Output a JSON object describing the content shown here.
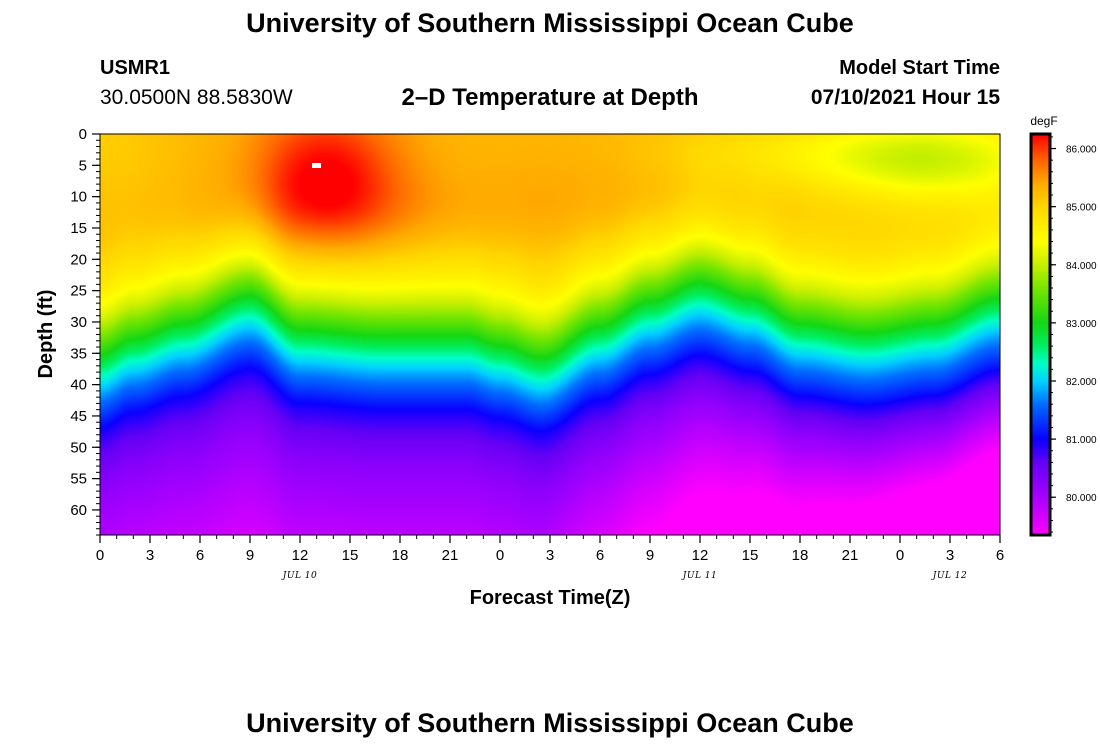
{
  "header": {
    "title": "University of Southern Mississippi Ocean Cube",
    "station": "USMR1",
    "coords": "30.0500N  88.5830W",
    "subtitle": "2–D Temperature at Depth",
    "model_start_label": "Model Start Time",
    "model_start_value": "07/10/2021 Hour 15"
  },
  "footer": {
    "title": "University of Southern Mississippi Ocean Cube"
  },
  "chart_data": {
    "type": "heatmap",
    "title": "2–D Temperature at Depth",
    "xlabel": "Forecast Time(Z)",
    "ylabel": "Depth (ft)",
    "x_unit": "hours since JUL 10 00Z",
    "xlim": [
      0,
      54
    ],
    "ylim": [
      0,
      64
    ],
    "y_inverted": true,
    "x_ticks": [
      0,
      3,
      6,
      9,
      12,
      15,
      18,
      21,
      24,
      27,
      30,
      33,
      36,
      39,
      42,
      45,
      48,
      51,
      54
    ],
    "x_tick_labels": [
      "0",
      "3",
      "6",
      "9",
      "12",
      "15",
      "18",
      "21",
      "0",
      "3",
      "6",
      "9",
      "12",
      "15",
      "18",
      "21",
      "0",
      "3",
      "6"
    ],
    "y_ticks": [
      0,
      5,
      10,
      15,
      20,
      25,
      30,
      35,
      40,
      45,
      50,
      55,
      60
    ],
    "y_tick_labels": [
      "0",
      "5",
      "10",
      "15",
      "20",
      "25",
      "30",
      "35",
      "40",
      "45",
      "50",
      "55",
      "60"
    ],
    "date_labels": [
      {
        "text": "JUL 10",
        "x": 12
      },
      {
        "text": "JUL 11",
        "x": 36
      },
      {
        "text": "JUL 12",
        "x": 51
      }
    ],
    "colorbar": {
      "unit": "degF",
      "min": 79.35,
      "max": 86.25,
      "ticks": [
        80,
        81,
        82,
        83,
        84,
        85,
        86
      ],
      "tick_labels": [
        "80.000",
        "81.000",
        "82.000",
        "83.000",
        "84.000",
        "85.000",
        "86.000"
      ]
    },
    "gradient_midline": [
      {
        "x": 0,
        "depth": 36
      },
      {
        "x": 2,
        "depth": 33.5
      },
      {
        "x": 5,
        "depth": 31
      },
      {
        "x": 9,
        "depth": 26.5
      },
      {
        "x": 12,
        "depth": 32
      },
      {
        "x": 17,
        "depth": 33
      },
      {
        "x": 22,
        "depth": 33
      },
      {
        "x": 24,
        "depth": 34.5
      },
      {
        "x": 26.5,
        "depth": 36.5
      },
      {
        "x": 30,
        "depth": 31.5
      },
      {
        "x": 33,
        "depth": 27.5
      },
      {
        "x": 36,
        "depth": 24.5
      },
      {
        "x": 39,
        "depth": 27
      },
      {
        "x": 42,
        "depth": 31
      },
      {
        "x": 46,
        "depth": 32.5
      },
      {
        "x": 50,
        "depth": 31
      },
      {
        "x": 54,
        "depth": 27
      }
    ],
    "warm_anomalies": [
      {
        "x": 13.5,
        "depth": 7,
        "sx": 3.2,
        "sy": 8,
        "amp": 1.0
      },
      {
        "x": 14.5,
        "depth": 13,
        "sx": 9,
        "sy": 5,
        "amp": 0.25
      },
      {
        "x": 33,
        "depth": 10,
        "sx": 6,
        "sy": 6,
        "amp": 0.15
      }
    ],
    "cool_anomalies": [
      {
        "x": 50,
        "depth": 4,
        "sx": 5,
        "sy": 5,
        "amp": 1.1
      },
      {
        "x": 42,
        "depth": 3,
        "sx": 6,
        "sy": 4,
        "amp": 0.4
      },
      {
        "x": 0,
        "depth": 2,
        "sx": 3,
        "sy": 8,
        "amp": 0.2
      }
    ],
    "surface_base_degF": 85.3,
    "deep_base_degF": 80.4
  }
}
